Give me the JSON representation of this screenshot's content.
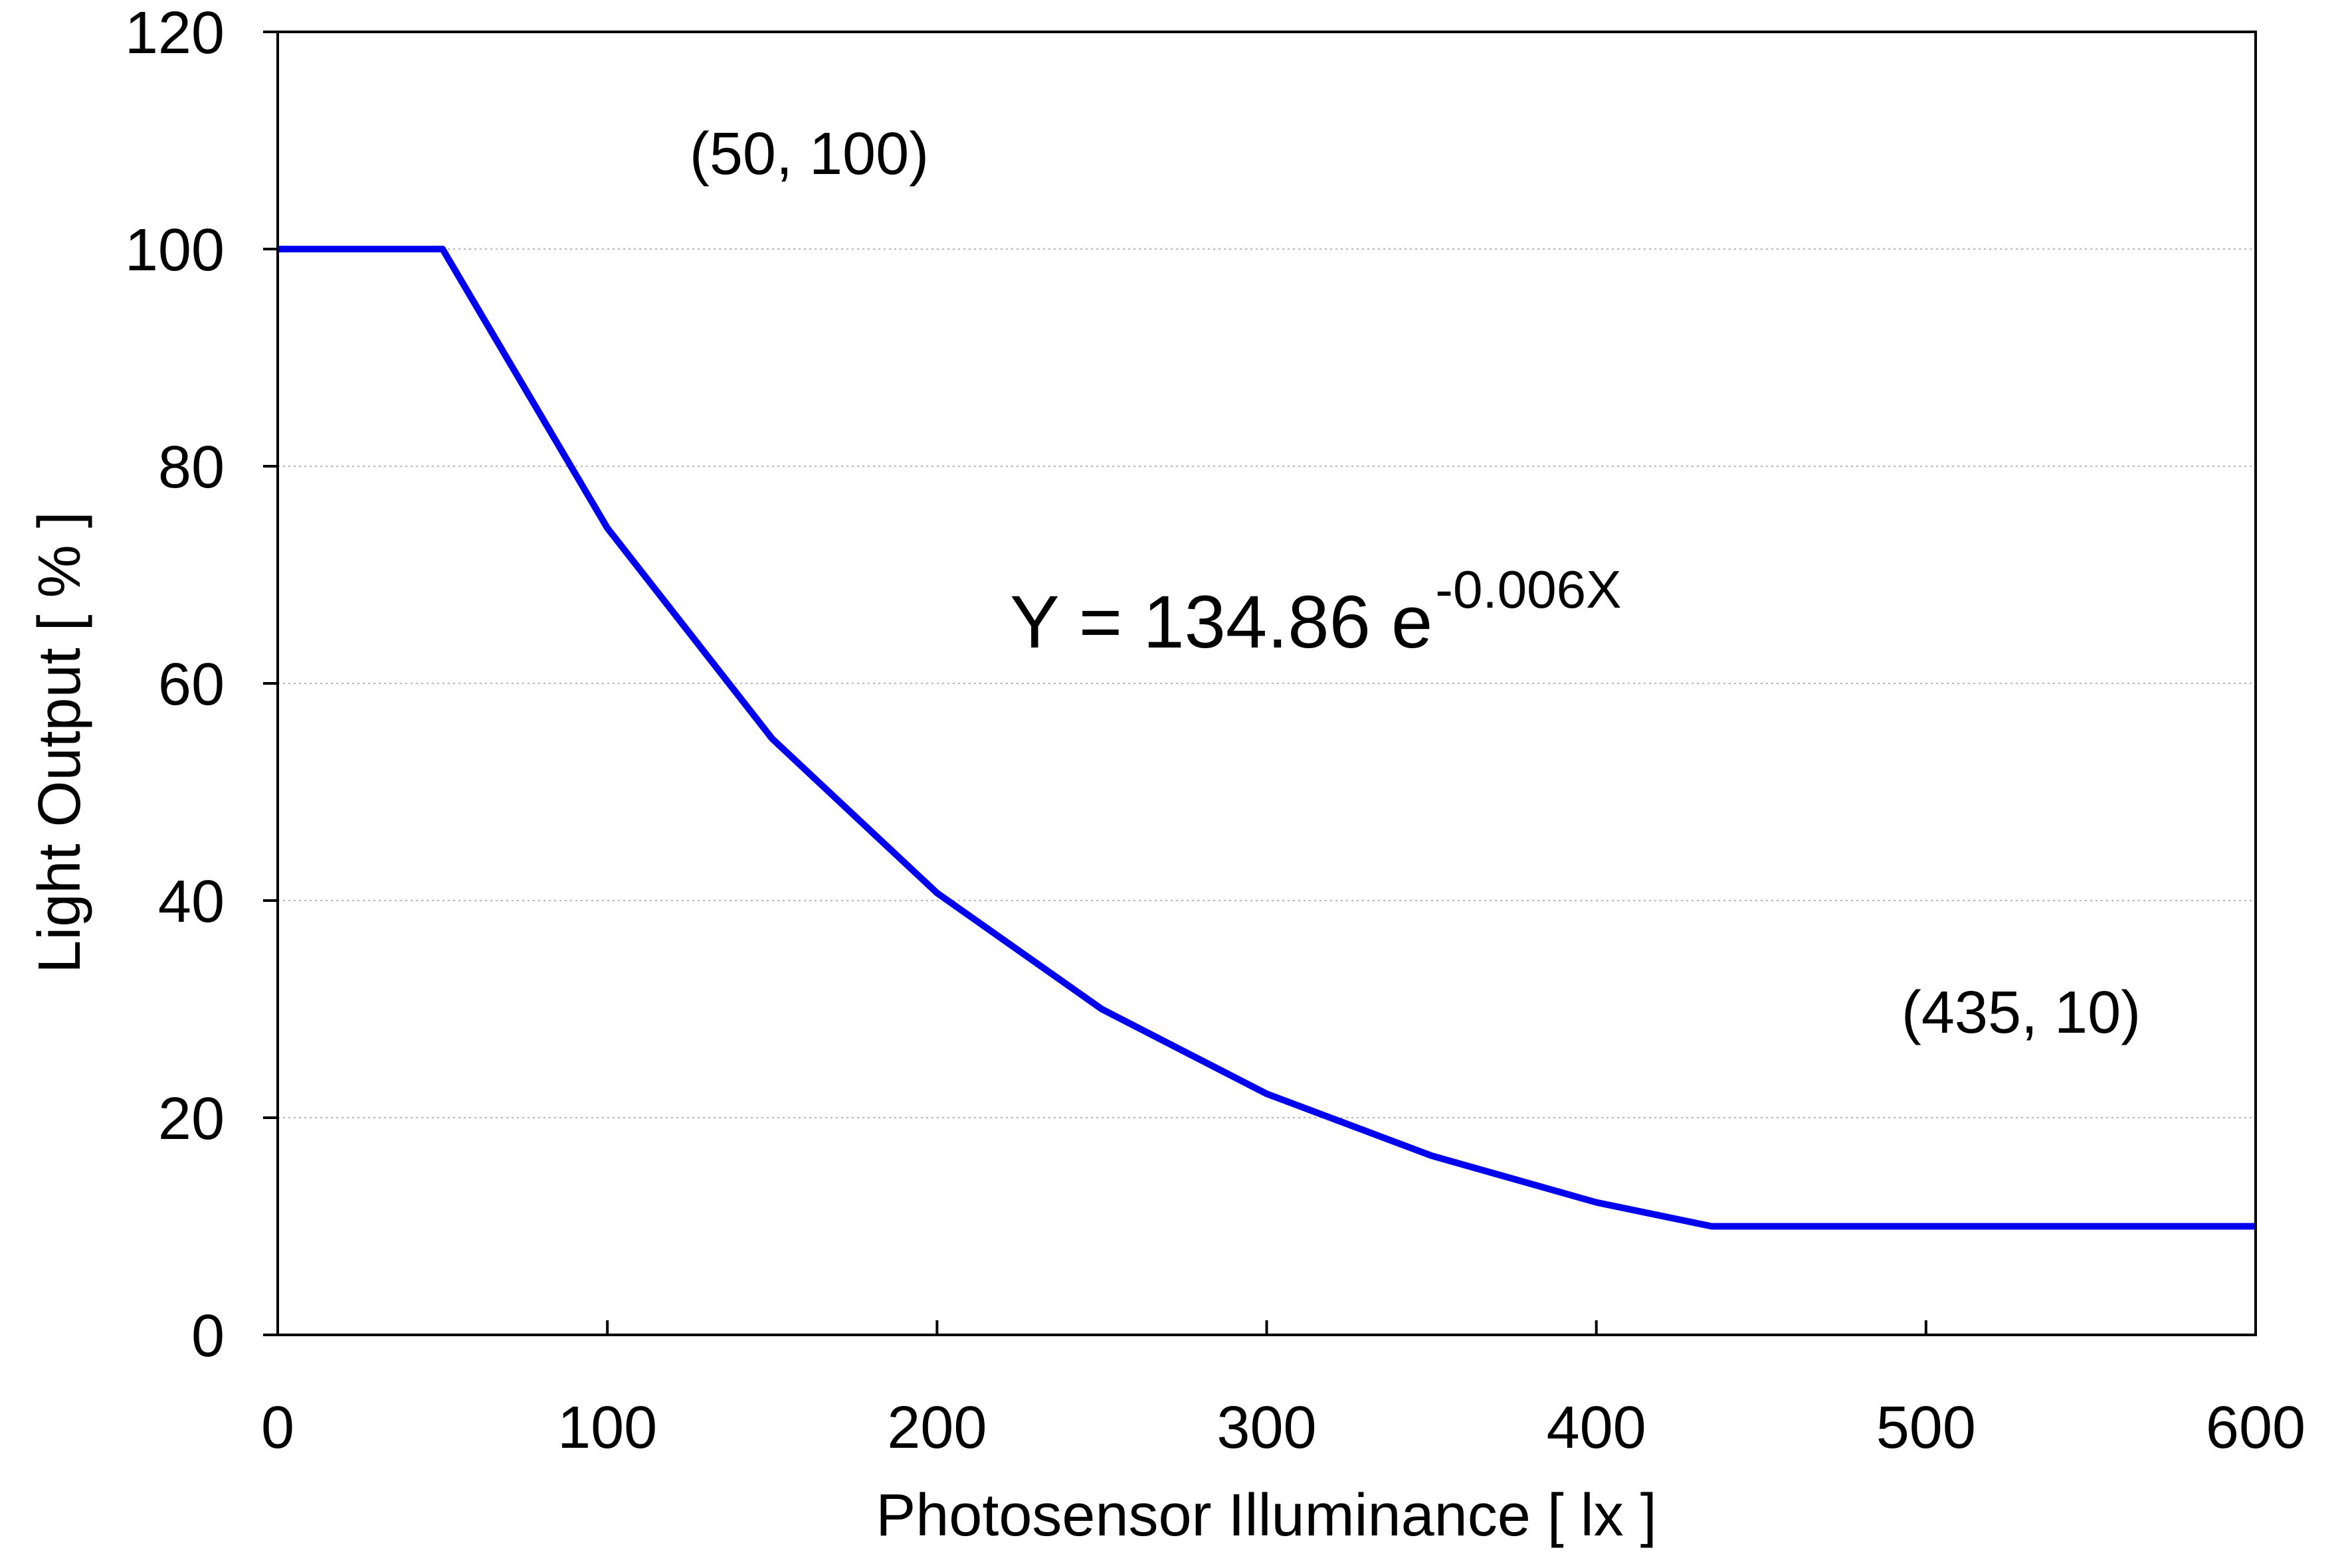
{
  "chart_data": {
    "type": "line",
    "title": "",
    "xlabel": "Photosensor Illuminance [ lx ]",
    "ylabel": "Light Output [ % ]",
    "xlim": [
      0,
      600
    ],
    "ylim": [
      0,
      120
    ],
    "x_ticks": [
      0,
      100,
      200,
      300,
      400,
      500,
      600
    ],
    "y_ticks": [
      0,
      20,
      40,
      60,
      80,
      100,
      120
    ],
    "x_tick_labels": [
      "0",
      "100",
      "200",
      "300",
      "400",
      "500",
      "600"
    ],
    "y_tick_labels": [
      "0",
      "20",
      "40",
      "60",
      "80",
      "100",
      "120"
    ],
    "grid": "horizontal dotted gridlines",
    "legend": "none",
    "series": [
      {
        "color": "#0000ee",
        "x": [
          0,
          50,
          100,
          150,
          200,
          250,
          300,
          350,
          400,
          435,
          600
        ],
        "y": [
          100,
          100,
          74.3,
          54.9,
          40.7,
          30.0,
          22.2,
          16.5,
          12.2,
          10,
          10
        ]
      }
    ],
    "annotations": {
      "point_start": "(50, 100)",
      "point_end": "(435, 10)",
      "equation_main": "Y = 134.86 e",
      "equation_exponent": "-0.006X"
    }
  }
}
